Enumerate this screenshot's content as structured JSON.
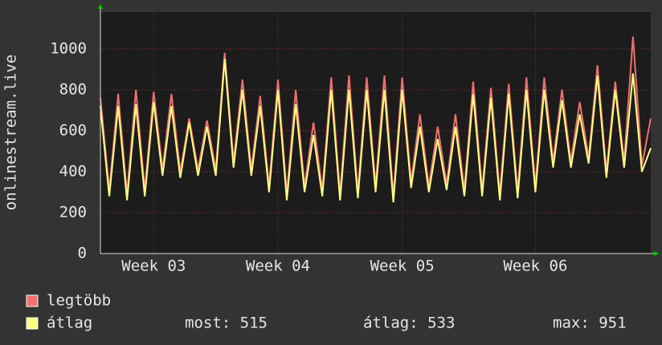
{
  "chart_data": {
    "type": "line",
    "ylabel": "onlinestream.live",
    "categories": [
      null,
      null,
      null,
      null,
      null,
      null,
      "Week 03",
      null,
      null,
      null,
      null,
      null,
      null,
      null,
      null,
      null,
      null,
      null,
      null,
      null,
      "Week 04",
      null,
      null,
      null,
      null,
      null,
      null,
      null,
      null,
      null,
      null,
      null,
      null,
      null,
      "Week 05",
      null,
      null,
      null,
      null,
      null,
      null,
      null,
      null,
      null,
      null,
      null,
      null,
      null,
      null,
      "Week 06",
      null,
      null,
      null,
      null,
      null,
      null,
      null,
      null,
      null,
      null,
      null,
      null,
      null
    ],
    "series": [
      {
        "name": "legtöbb",
        "color": "#f07070",
        "values": [
          760,
          310,
          780,
          290,
          800,
          310,
          790,
          410,
          780,
          400,
          660,
          410,
          650,
          410,
          980,
          450,
          850,
          410,
          770,
          330,
          850,
          290,
          800,
          330,
          640,
          310,
          860,
          290,
          870,
          300,
          860,
          330,
          870,
          280,
          860,
          350,
          680,
          330,
          620,
          340,
          680,
          310,
          840,
          310,
          810,
          290,
          830,
          300,
          860,
          330,
          860,
          450,
          800,
          450,
          740,
          470,
          920,
          400,
          840,
          450,
          1060,
          430,
          660
        ]
      },
      {
        "name": "átlag",
        "color": "#ffff80",
        "values": [
          720,
          280,
          720,
          260,
          730,
          280,
          740,
          380,
          720,
          370,
          640,
          380,
          620,
          380,
          950,
          420,
          800,
          380,
          720,
          300,
          800,
          260,
          730,
          300,
          580,
          280,
          800,
          260,
          800,
          270,
          800,
          300,
          800,
          250,
          800,
          320,
          620,
          300,
          560,
          310,
          620,
          280,
          780,
          280,
          760,
          260,
          780,
          270,
          800,
          300,
          800,
          420,
          750,
          420,
          680,
          440,
          870,
          370,
          800,
          420,
          880,
          400,
          515
        ]
      }
    ],
    "ylim": [
      0,
      1180
    ],
    "yticks": [
      0,
      200,
      400,
      600,
      800,
      1000
    ],
    "grid": true,
    "legend_stats": [
      "most: 515",
      "átlag: 533",
      "max: 951"
    ]
  }
}
